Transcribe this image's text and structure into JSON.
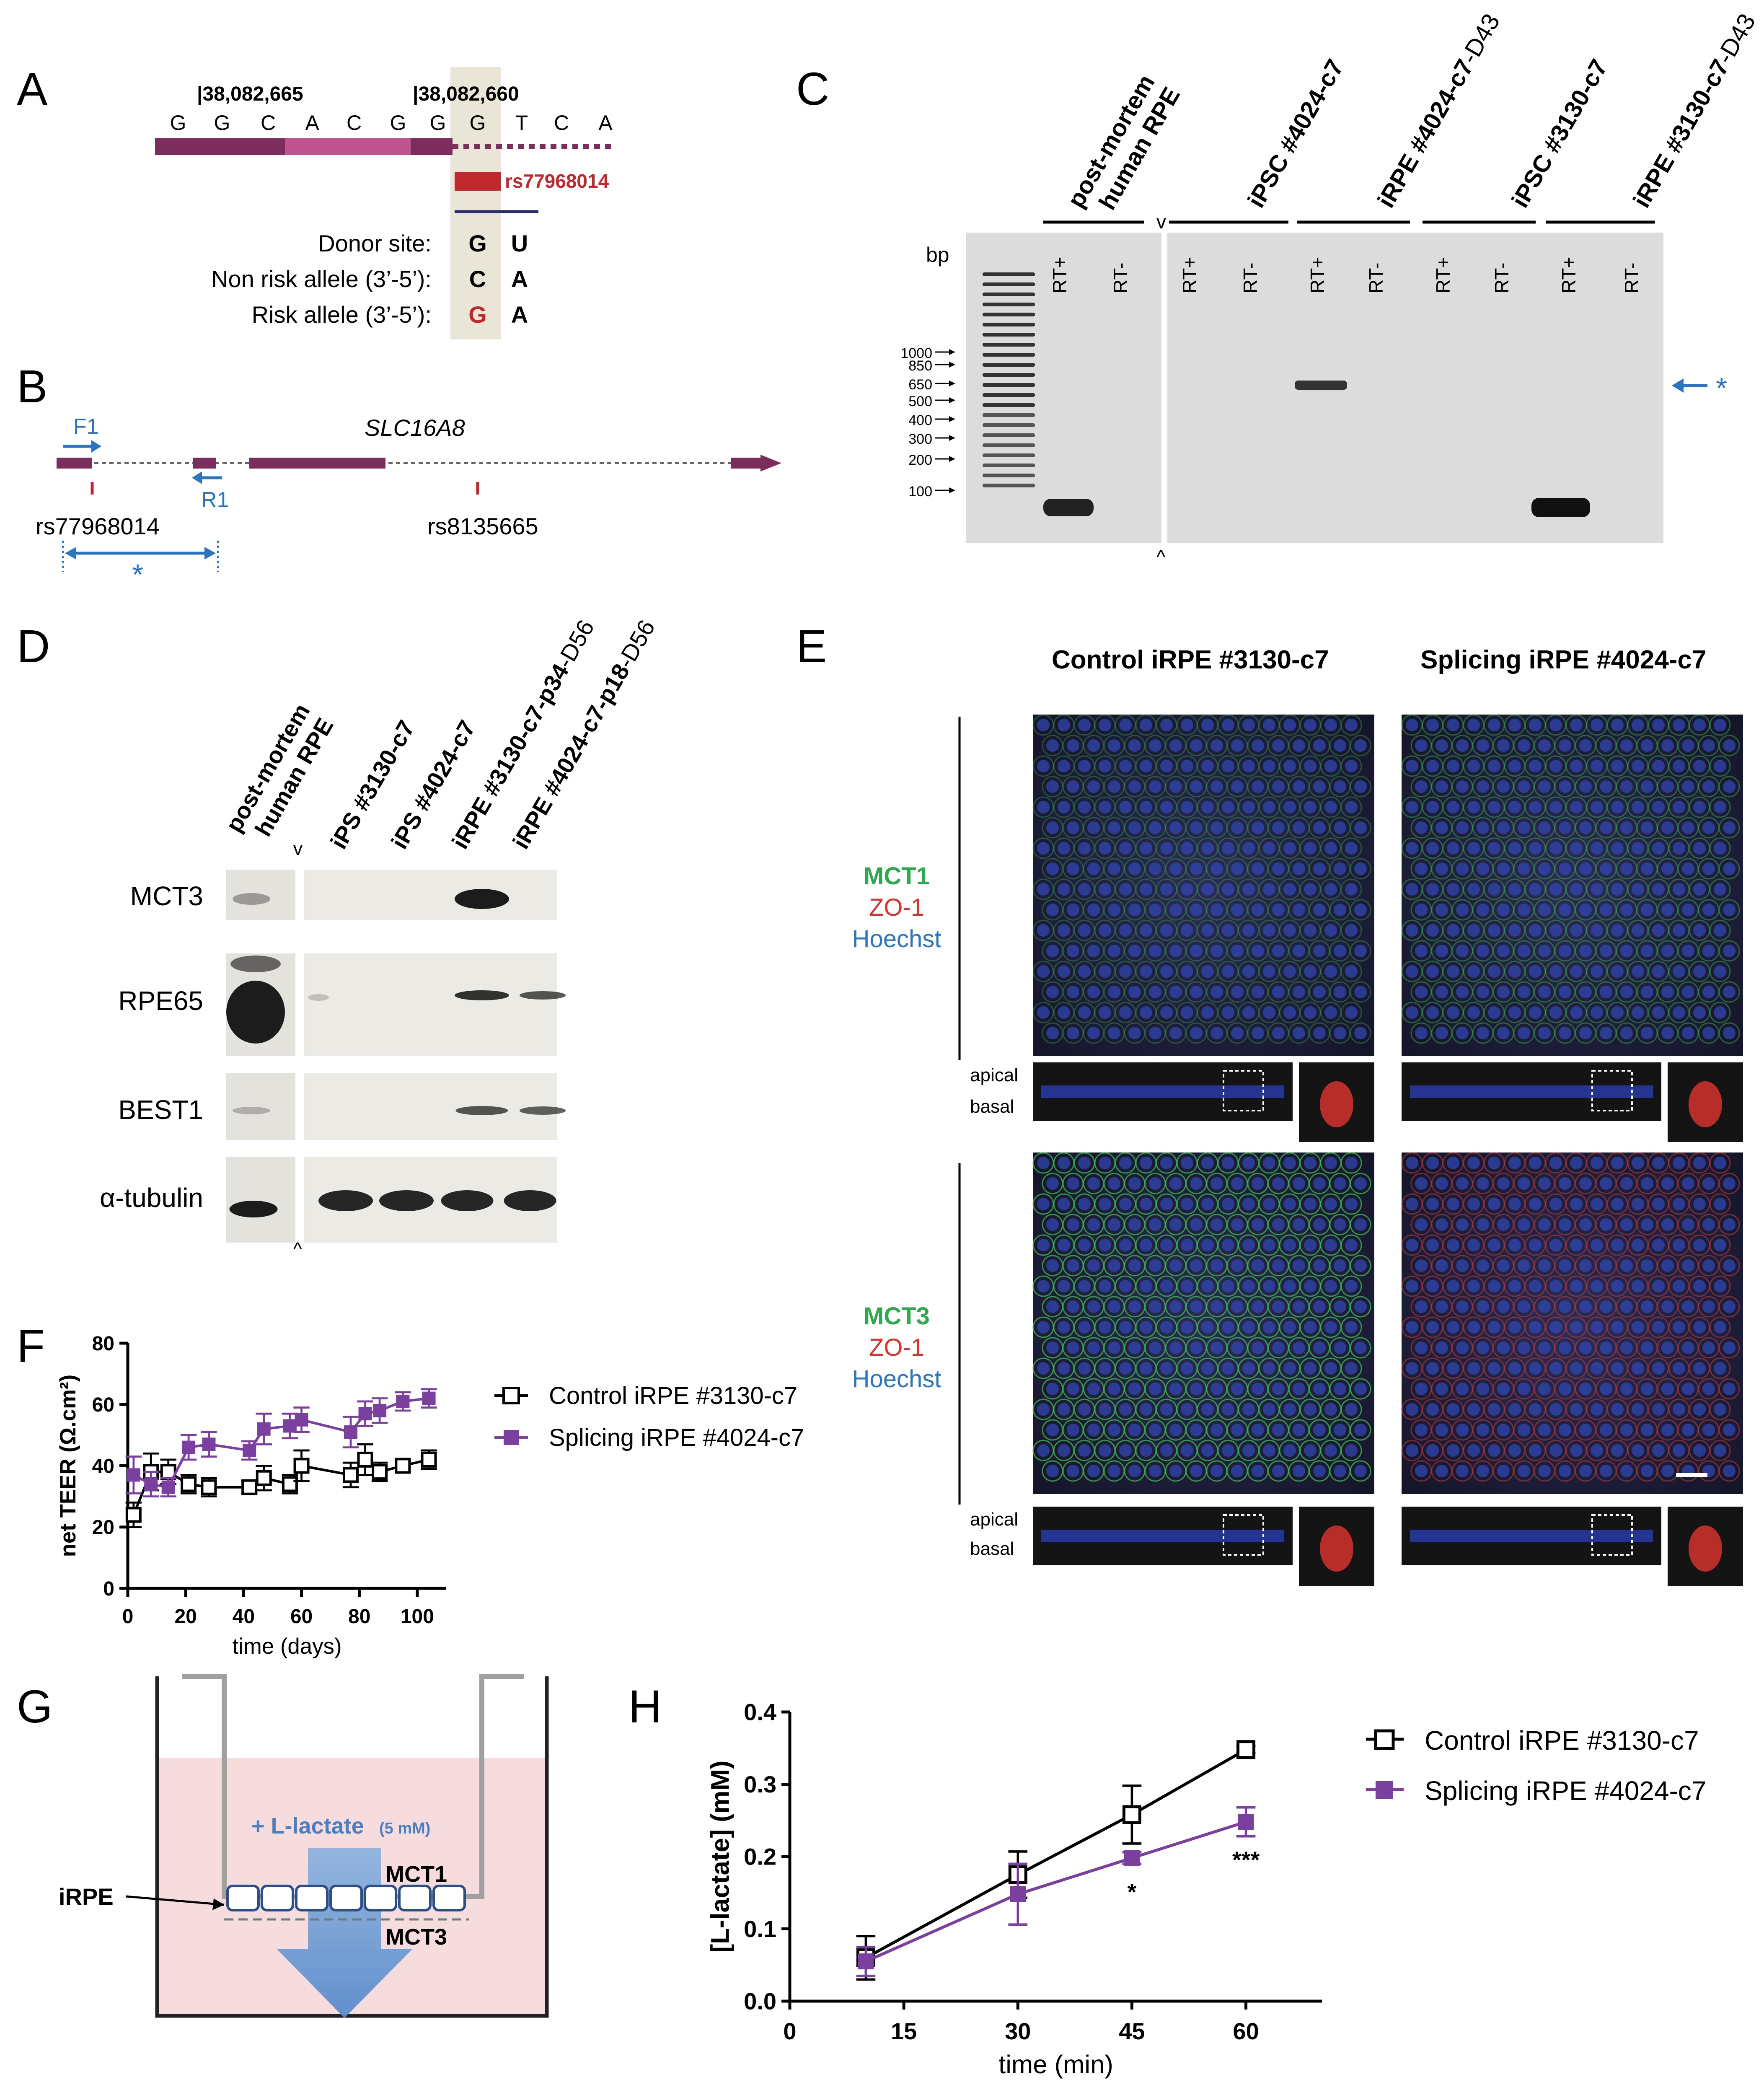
{
  "panels": {
    "A": {
      "label": "A",
      "pos1": "|38,082,665",
      "pos2": "|38,082,660",
      "sequence": [
        "G",
        "G",
        "C",
        "A",
        "C",
        "G",
        "G",
        "G",
        "T",
        "C",
        "A"
      ],
      "snp": "rs77968014",
      "rows": [
        {
          "name": "Donor site:",
          "b1": "G",
          "b2": "U"
        },
        {
          "name": "Non risk allele (3’-5’):",
          "b1": "C",
          "b2": "A"
        },
        {
          "name": "Risk allele (3’-5’):",
          "b1": "G",
          "b2": "A"
        }
      ],
      "colors": {
        "exon_dark": "#7b2d5c",
        "exon_light": "#c0548f",
        "risk": "#c0282d",
        "highlight": "#e9e6d7"
      }
    },
    "B": {
      "label": "B",
      "gene": "SLC16A8",
      "primer_f": "F1",
      "primer_r": "R1",
      "snp1": "rs77968014",
      "snp2": "rs8135665",
      "star": "*",
      "colors": {
        "exon": "#7b2d5c",
        "primer": "#2a74c0"
      }
    },
    "C": {
      "label": "C",
      "columns": [
        {
          "l1": "post-mortem",
          "l2": "human RPE"
        },
        {
          "l1": "iPSC #4024-c7",
          "l2": ""
        },
        {
          "l1": "iRPE #4024-c7",
          "suffix": "-D43"
        },
        {
          "l1": "iPSC #3130-c7",
          "l2": ""
        },
        {
          "l1": "iRPE #3130-c7",
          "suffix": "-D43"
        }
      ],
      "lanes": [
        "RT+",
        "RT-",
        "RT+",
        "RT-",
        "RT+",
        "RT-",
        "RT+",
        "RT-",
        "RT+",
        "RT-"
      ],
      "bp_label": "bp",
      "ladder": [
        "1000",
        "850",
        "650",
        "500",
        "400",
        "300",
        "200",
        "100"
      ],
      "split_top": "v",
      "split_bottom": "^",
      "star": "*"
    },
    "D": {
      "label": "D",
      "columns": [
        "post-mortem human RPE",
        "iPS #3130-c7",
        "iPS #4024-c7",
        "iRPE #3130-c7-p34-D56",
        "iRPE #4024-c7-p18-D56"
      ],
      "col_l1": "post-mortem",
      "col_l2": "human RPE",
      "col_suffix3": "-D56",
      "col_suffix4": "-D56",
      "col_main3": "iRPE #3130-c7-p34",
      "col_main4": "iRPE #4024-c7-p18",
      "rows": [
        "MCT3",
        "RPE65",
        "BEST1",
        "α-tubulin"
      ],
      "split_top": "v",
      "split_bottom": "^"
    },
    "E": {
      "label": "E",
      "col1": "Control iRPE #3130-c7",
      "col2": "Splicing iRPE #4024-c7",
      "row1": {
        "l1": "MCT1",
        "l2": "ZO-1",
        "l3": "Hoechst"
      },
      "row2": {
        "l1": "MCT3",
        "l2": "ZO-1",
        "l3": "Hoechst"
      },
      "apical": "apical",
      "basal": "basal",
      "colors": {
        "green": "#2fa84f",
        "red": "#e0302a",
        "blue": "#2a74c0"
      }
    },
    "F": {
      "label": "F",
      "legend1": "Control iRPE #3130-c7",
      "legend2": "Splicing iRPE #4024-c7"
    },
    "G": {
      "label": "G",
      "lactate": "+ L-lactate",
      "conc": "(5 mM)",
      "mct1": "MCT1",
      "mct3": "MCT3",
      "cells": "iRPE",
      "colors": {
        "medium": "#f6dcdc",
        "arrow": "#6e9bd0",
        "cells": "#2b4f86"
      }
    },
    "H": {
      "label": "H",
      "legend1": "Control iRPE #3130-c7",
      "legend2": "Splicing iRPE #4024-c7",
      "sig45": "*",
      "sig60": "***"
    }
  },
  "chart_data": [
    {
      "id": "F",
      "type": "line",
      "xlabel": "time (days)",
      "ylabel": "net TEER (Ω.cm²)",
      "xlim": [
        0,
        110
      ],
      "ylim": [
        0,
        80
      ],
      "xticks": [
        0,
        20,
        40,
        60,
        80,
        100
      ],
      "yticks": [
        0,
        20,
        40,
        60,
        80
      ],
      "series": [
        {
          "name": "Control iRPE #3130-c7",
          "color": "#000000",
          "marker": "open-square",
          "x": [
            2,
            8,
            14,
            21,
            28,
            42,
            47,
            56,
            60,
            77,
            82,
            87,
            95,
            104
          ],
          "y": [
            24,
            38,
            38,
            34,
            33,
            33,
            36,
            34,
            40,
            37,
            42,
            38,
            40,
            42
          ],
          "err": [
            4,
            6,
            4,
            3,
            3,
            2,
            4,
            3,
            5,
            4,
            5,
            3,
            2,
            3
          ]
        },
        {
          "name": "Splicing iRPE #4024-c7",
          "color": "#7b3fa0",
          "marker": "filled-square",
          "x": [
            2,
            8,
            14,
            21,
            28,
            42,
            47,
            56,
            60,
            77,
            82,
            87,
            95,
            104
          ],
          "y": [
            37,
            34,
            33,
            46,
            47,
            45,
            52,
            53,
            55,
            51,
            57,
            58,
            61,
            62
          ],
          "err": [
            6,
            4,
            3,
            4,
            4,
            3,
            5,
            4,
            4,
            5,
            4,
            4,
            3,
            3
          ]
        }
      ]
    },
    {
      "id": "H",
      "type": "line",
      "xlabel": "time (min)",
      "ylabel": "[L-lactate] (mM)",
      "xlim": [
        0,
        70
      ],
      "ylim": [
        0,
        0.4
      ],
      "xticks": [
        0,
        15,
        30,
        45,
        60
      ],
      "yticks": [
        0.0,
        0.1,
        0.2,
        0.3,
        0.4
      ],
      "series": [
        {
          "name": "Control iRPE #3130-c7",
          "color": "#000000",
          "marker": "open-square",
          "x": [
            10,
            30,
            45,
            60
          ],
          "y": [
            0.06,
            0.175,
            0.258,
            0.348
          ],
          "err": [
            0.03,
            0.032,
            0.04,
            0.005
          ]
        },
        {
          "name": "Splicing iRPE #4024-c7",
          "color": "#7b3fa0",
          "marker": "filled-square",
          "x": [
            10,
            30,
            45,
            60
          ],
          "y": [
            0.055,
            0.148,
            0.198,
            0.248
          ],
          "err": [
            0.02,
            0.042,
            0.008,
            0.02
          ]
        }
      ]
    }
  ]
}
